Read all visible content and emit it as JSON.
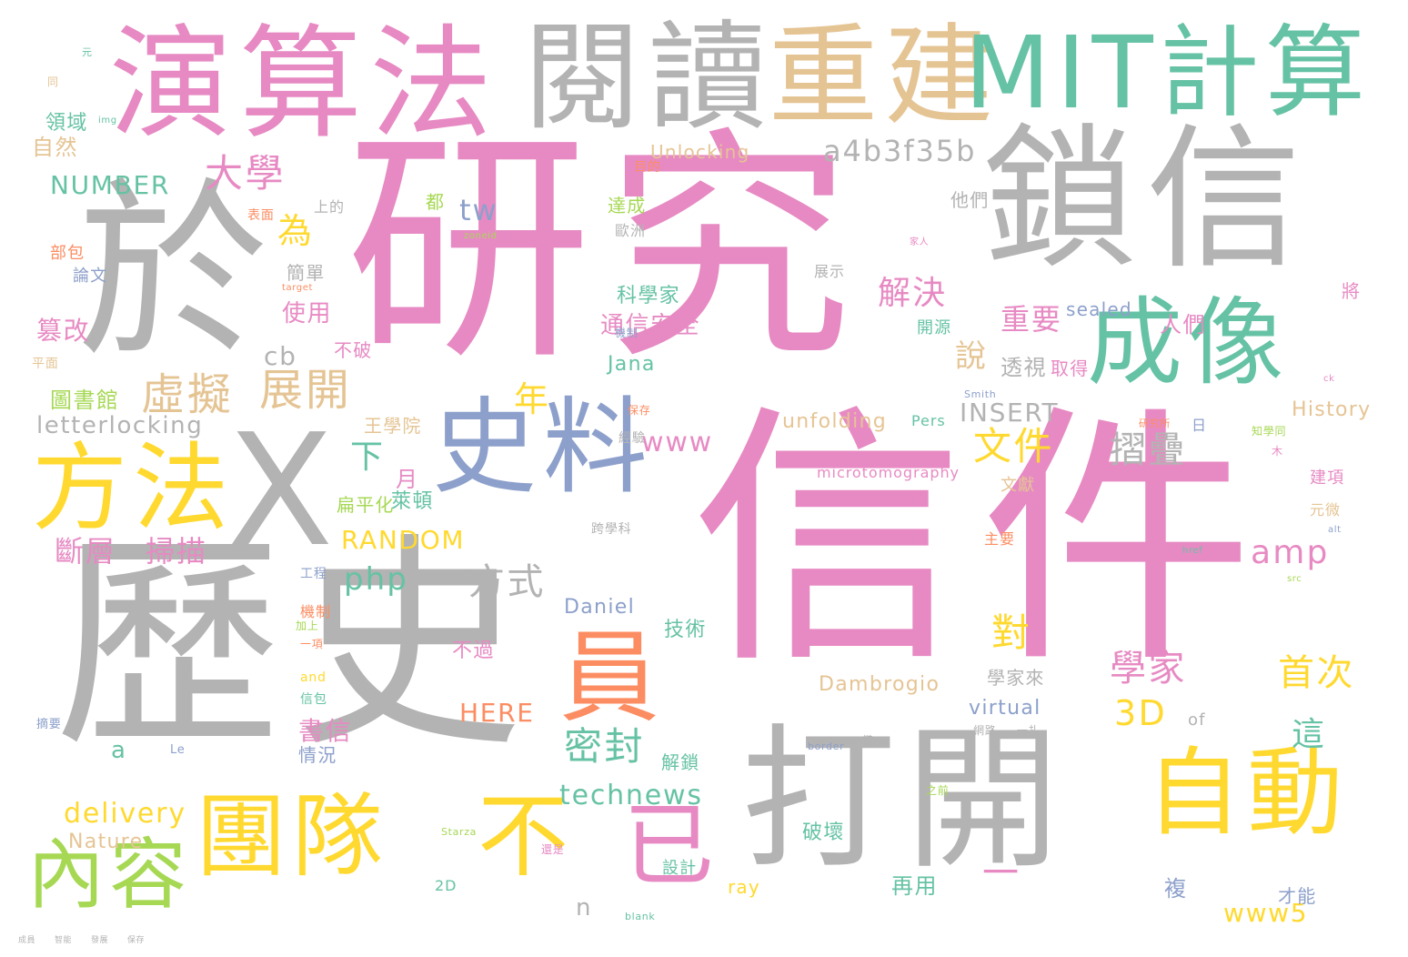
{
  "words": [
    "信件",
    "研究",
    "歷史",
    "於",
    "X",
    "鎖信",
    "打開",
    "演算法",
    "閱讀",
    "重建",
    "MIT計算",
    "成像",
    "史料",
    "方法",
    "員",
    "自動",
    "團隊",
    "不",
    "已",
    "內容",
    "一",
    "大學",
    "a4b3f35b",
    "虛擬",
    "展開",
    "斷層",
    "掃描",
    "文件",
    "摺疊",
    "amp",
    "www",
    "RANDOM",
    "php",
    "方式",
    "Unlocking",
    "為",
    "tw",
    "解決",
    "成員",
    "NUMBER",
    "領域",
    "自然",
    "篡改",
    "圖書館",
    "letterlocking",
    "平面",
    "重要",
    "說",
    "透視",
    "取得",
    "首次",
    "學家",
    "對",
    "3D",
    "這",
    "密封",
    "technews",
    "delivery",
    "Nature",
    "www5",
    "HERE",
    "unfolding",
    "INSERT",
    "History",
    "microtomography",
    "Dambrogio",
    "virtual",
    "sealed",
    "Daniel",
    "Jana",
    "cb",
    "年",
    "下",
    "月",
    "萊頓",
    "扁平化",
    "科學家",
    "使用",
    "簡單",
    "通信安全",
    "技術",
    "不過",
    "書信",
    "情況",
    "解鎖",
    "破壞",
    "設計",
    "再用",
    "複",
    "才能",
    "ray",
    "n",
    "a",
    "of",
    "2D",
    "Le",
    "Smith",
    "Pers",
    "Starza",
    "img",
    "blank",
    "target",
    "border",
    "href",
    "src",
    "zoneid",
    "alt",
    "ck",
    "and",
    "王學院",
    "不破",
    "開源",
    "他們",
    "人們",
    "將",
    "達成",
    "目的",
    "歐洲",
    "展示",
    "都",
    "日",
    "元微",
    "建項",
    "文獻",
    "主要",
    "工程",
    "機制",
    "信包",
    "經驗",
    "保存",
    "跨學科",
    "部包",
    "論文",
    "上的",
    "表面",
    "木",
    "元",
    "同",
    "還是",
    "摘要",
    "一項",
    "家人",
    "加上",
    "機制",
    "鍵",
    "網路",
    "一扎",
    "之前",
    "研究所",
    "知學同",
    "學家來",
    "智能",
    "發展",
    "保存"
  ]
}
